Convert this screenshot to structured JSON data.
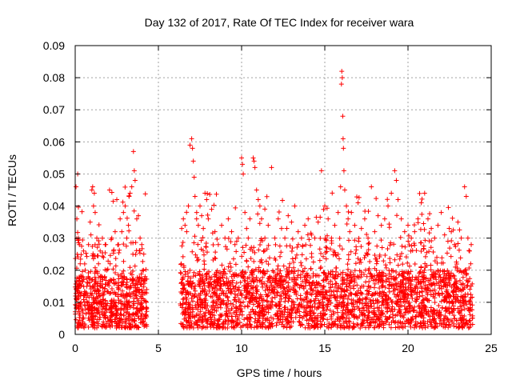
{
  "chart_data": {
    "type": "scatter",
    "title": "Day 132 of 2017, Rate Of TEC Index for receiver wara",
    "xlabel": "GPS time / hours",
    "ylabel": "ROTI / TECUs",
    "xlim": [
      0,
      25
    ],
    "ylim": [
      0,
      0.09
    ],
    "x_ticks": [
      0,
      5,
      10,
      15,
      20,
      25
    ],
    "y_ticks": [
      0,
      0.01,
      0.02,
      0.03,
      0.04,
      0.05,
      0.06,
      0.07,
      0.08,
      0.09
    ],
    "x_tick_labels": [
      "0",
      "5",
      "10",
      "15",
      "20",
      "25"
    ],
    "y_tick_labels": [
      "0",
      "0.01",
      "0.02",
      "0.03",
      "0.04",
      "0.05",
      "0.06",
      "0.07",
      "0.08",
      "0.09"
    ],
    "grid": true,
    "marker": "+",
    "color": "#ff0000",
    "series": [
      {
        "points": [
          [
            0.05,
            0.046
          ],
          [
            0.1,
            0.036
          ],
          [
            0.15,
            0.05
          ],
          [
            0.2,
            0.03
          ],
          [
            0.25,
            0.028
          ],
          [
            0.3,
            0.022
          ],
          [
            0.4,
            0.018
          ],
          [
            0.5,
            0.026
          ],
          [
            0.55,
            0.012
          ],
          [
            0.6,
            0.02
          ],
          [
            0.7,
            0.015
          ],
          [
            0.8,
            0.028
          ],
          [
            0.9,
            0.035
          ],
          [
            1.0,
            0.045
          ],
          [
            1.05,
            0.046
          ],
          [
            1.1,
            0.04
          ],
          [
            1.15,
            0.044
          ],
          [
            1.2,
            0.038
          ],
          [
            1.3,
            0.03
          ],
          [
            1.4,
            0.022
          ],
          [
            1.5,
            0.026
          ],
          [
            1.6,
            0.018
          ],
          [
            1.7,
            0.024
          ],
          [
            1.8,
            0.028
          ],
          [
            1.9,
            0.02
          ],
          [
            2.0,
            0.016
          ],
          [
            2.1,
            0.022
          ],
          [
            2.2,
            0.03
          ],
          [
            2.3,
            0.026
          ],
          [
            2.4,
            0.032
          ],
          [
            2.5,
            0.042
          ],
          [
            2.6,
            0.028
          ],
          [
            2.7,
            0.036
          ],
          [
            2.8,
            0.032
          ],
          [
            2.9,
            0.038
          ],
          [
            3.0,
            0.04
          ],
          [
            3.1,
            0.03
          ],
          [
            3.2,
            0.034
          ],
          [
            3.3,
            0.044
          ],
          [
            3.4,
            0.046
          ],
          [
            3.5,
            0.057
          ],
          [
            3.55,
            0.051
          ],
          [
            3.6,
            0.048
          ],
          [
            3.7,
            0.036
          ],
          [
            3.8,
            0.037
          ],
          [
            3.9,
            0.03
          ],
          [
            4.0,
            0.028
          ],
          [
            4.1,
            0.02
          ],
          [
            4.2,
            0.018
          ],
          [
            4.3,
            0.014
          ],
          [
            6.4,
            0.033
          ],
          [
            6.5,
            0.036
          ],
          [
            6.6,
            0.034
          ],
          [
            6.7,
            0.032
          ],
          [
            6.8,
            0.04
          ],
          [
            6.9,
            0.059
          ],
          [
            7.0,
            0.061
          ],
          [
            7.05,
            0.058
          ],
          [
            7.1,
            0.054
          ],
          [
            7.15,
            0.049
          ],
          [
            7.2,
            0.043
          ],
          [
            7.3,
            0.038
          ],
          [
            7.4,
            0.034
          ],
          [
            7.5,
            0.04
          ],
          [
            7.6,
            0.037
          ],
          [
            7.7,
            0.033
          ],
          [
            7.8,
            0.044
          ],
          [
            7.9,
            0.042
          ],
          [
            8.0,
            0.036
          ],
          [
            8.2,
            0.039
          ],
          [
            8.4,
            0.032
          ],
          [
            8.6,
            0.028
          ],
          [
            8.8,
            0.034
          ],
          [
            9.0,
            0.03
          ],
          [
            9.2,
            0.036
          ],
          [
            9.4,
            0.032
          ],
          [
            9.6,
            0.028
          ],
          [
            9.8,
            0.03
          ],
          [
            10.0,
            0.055
          ],
          [
            10.05,
            0.053
          ],
          [
            10.1,
            0.05
          ],
          [
            10.2,
            0.038
          ],
          [
            10.3,
            0.033
          ],
          [
            10.4,
            0.03
          ],
          [
            10.5,
            0.036
          ],
          [
            10.7,
            0.055
          ],
          [
            10.75,
            0.054
          ],
          [
            10.8,
            0.052
          ],
          [
            10.9,
            0.045
          ],
          [
            11.0,
            0.042
          ],
          [
            11.1,
            0.04
          ],
          [
            11.2,
            0.036
          ],
          [
            11.4,
            0.03
          ],
          [
            11.6,
            0.034
          ],
          [
            11.8,
            0.052
          ],
          [
            12.0,
            0.03
          ],
          [
            12.2,
            0.036
          ],
          [
            12.4,
            0.033
          ],
          [
            12.6,
            0.03
          ],
          [
            12.8,
            0.037
          ],
          [
            13.0,
            0.035
          ],
          [
            13.2,
            0.04
          ],
          [
            13.4,
            0.032
          ],
          [
            13.6,
            0.03
          ],
          [
            13.8,
            0.034
          ],
          [
            14.0,
            0.036
          ],
          [
            14.2,
            0.031
          ],
          [
            14.4,
            0.03
          ],
          [
            14.6,
            0.035
          ],
          [
            14.8,
            0.051
          ],
          [
            15.0,
            0.04
          ],
          [
            15.2,
            0.036
          ],
          [
            15.4,
            0.03
          ],
          [
            15.6,
            0.034
          ],
          [
            15.8,
            0.038
          ],
          [
            15.95,
            0.046
          ],
          [
            16.0,
            0.078
          ],
          [
            16.02,
            0.082
          ],
          [
            16.05,
            0.08
          ],
          [
            16.08,
            0.068
          ],
          [
            16.1,
            0.061
          ],
          [
            16.12,
            0.058
          ],
          [
            16.15,
            0.051
          ],
          [
            16.2,
            0.045
          ],
          [
            16.3,
            0.04
          ],
          [
            16.4,
            0.036
          ],
          [
            16.5,
            0.032
          ],
          [
            16.6,
            0.038
          ],
          [
            16.8,
            0.034
          ],
          [
            17.0,
            0.041
          ],
          [
            17.2,
            0.033
          ],
          [
            17.4,
            0.036
          ],
          [
            17.6,
            0.03
          ],
          [
            17.8,
            0.046
          ],
          [
            18.0,
            0.032
          ],
          [
            18.2,
            0.037
          ],
          [
            18.4,
            0.034
          ],
          [
            18.6,
            0.036
          ],
          [
            18.8,
            0.04
          ],
          [
            19.0,
            0.044
          ],
          [
            19.2,
            0.051
          ],
          [
            19.3,
            0.048
          ],
          [
            19.4,
            0.042
          ],
          [
            19.6,
            0.036
          ],
          [
            19.8,
            0.032
          ],
          [
            20.0,
            0.034
          ],
          [
            20.2,
            0.03
          ],
          [
            20.4,
            0.032
          ],
          [
            20.6,
            0.036
          ],
          [
            20.8,
            0.041
          ],
          [
            21.0,
            0.044
          ],
          [
            21.2,
            0.036
          ],
          [
            21.4,
            0.033
          ],
          [
            21.6,
            0.03
          ],
          [
            21.8,
            0.034
          ],
          [
            22.0,
            0.038
          ],
          [
            22.2,
            0.031
          ],
          [
            22.4,
            0.029
          ],
          [
            22.6,
            0.032
          ],
          [
            22.8,
            0.028
          ],
          [
            23.0,
            0.035
          ],
          [
            23.2,
            0.03
          ],
          [
            23.4,
            0.046
          ],
          [
            23.5,
            0.043
          ],
          [
            23.6,
            0.03
          ],
          [
            23.7,
            0.026
          ],
          [
            23.8,
            0.028
          ]
        ]
      }
    ],
    "density_clusters": [
      {
        "x_range": [
          0.0,
          4.3
        ],
        "y_base": [
          0.002,
          0.018
        ],
        "y_peak": 0.046,
        "count": 720,
        "seed": 11
      },
      {
        "x_range": [
          6.3,
          23.9
        ],
        "y_base": [
          0.002,
          0.02
        ],
        "y_peak": 0.045,
        "count": 2600,
        "seed": 29
      }
    ]
  }
}
